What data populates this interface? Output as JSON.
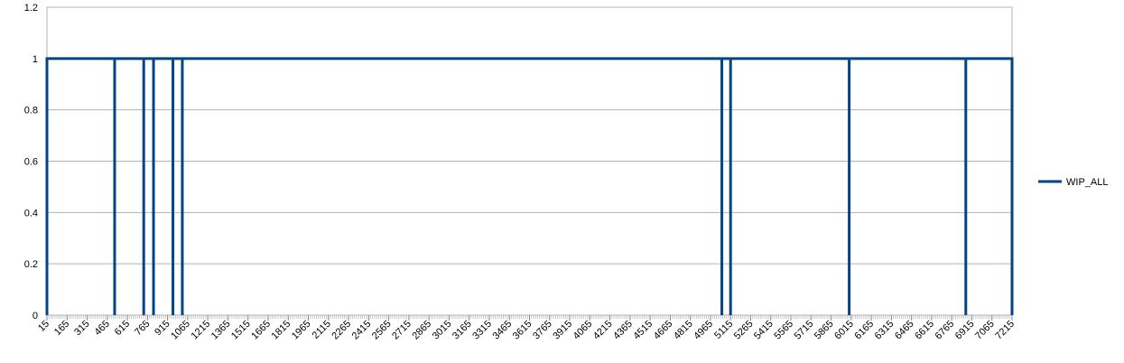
{
  "chart_data": {
    "type": "line",
    "step": true,
    "title": "",
    "xlabel": "",
    "ylabel": "",
    "ylim": [
      0,
      1.2
    ],
    "y_ticks": [
      0,
      0.2,
      0.4,
      0.6,
      0.8,
      1,
      1.2
    ],
    "y_tick_labels": [
      "0",
      "0.2",
      "0.4",
      "0.6",
      "0.8",
      "1",
      "1.2"
    ],
    "xlim": [
      15,
      7215
    ],
    "x_tick_labels": [
      "15",
      "165",
      "315",
      "465",
      "615",
      "765",
      "915",
      "1065",
      "1215",
      "1365",
      "1515",
      "1665",
      "1815",
      "1965",
      "2115",
      "2265",
      "2415",
      "2565",
      "2715",
      "2865",
      "3015",
      "3165",
      "3315",
      "3465",
      "3615",
      "3765",
      "3915",
      "4065",
      "4215",
      "4365",
      "4515",
      "4665",
      "4815",
      "4965",
      "5115",
      "5265",
      "5415",
      "5565",
      "5715",
      "5865",
      "6015",
      "6165",
      "6315",
      "6465",
      "6615",
      "6765",
      "6915",
      "7065",
      "7215"
    ],
    "grid": "horizontal",
    "legend_position": "right",
    "series": [
      {
        "name": "WIP_ALL",
        "color": "#004586",
        "segments_at_one": [
          [
            15,
            520
          ],
          [
            520,
            737
          ],
          [
            737,
            810
          ],
          [
            810,
            955
          ],
          [
            955,
            1025
          ],
          [
            1025,
            5050
          ],
          [
            5050,
            5115
          ],
          [
            5115,
            6000
          ],
          [
            6000,
            6870
          ],
          [
            6870,
            7215
          ]
        ]
      }
    ]
  }
}
